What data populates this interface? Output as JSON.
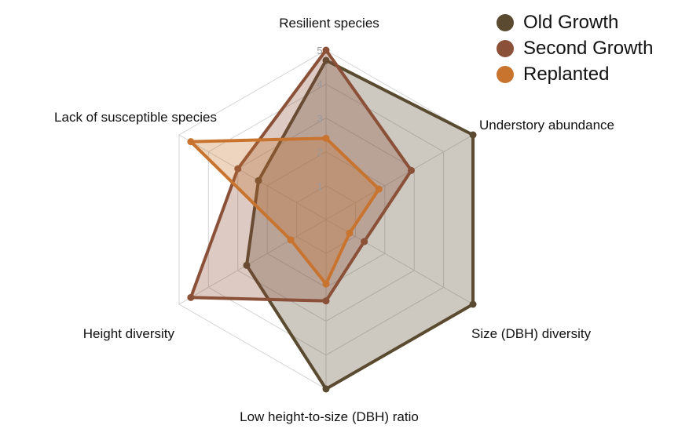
{
  "chart_data": {
    "type": "radar",
    "axes": [
      "Resilient species",
      "Understory abundance",
      "Size (DBH) diversity",
      "Low height-to-size (DBH) ratio",
      "Height diversity",
      "Lack of susceptible species"
    ],
    "ticks": [
      "1",
      "2",
      "3",
      "4",
      "5"
    ],
    "range": [
      0,
      5
    ],
    "series": [
      {
        "name": "Old Growth",
        "color": "#5a4a30",
        "values": [
          4.7,
          5.0,
          5.0,
          5.0,
          2.7,
          2.3
        ]
      },
      {
        "name": "Second Growth",
        "color": "#8a5038",
        "values": [
          5.0,
          2.9,
          1.3,
          2.4,
          4.6,
          3.0
        ]
      },
      {
        "name": "Replanted",
        "color": "#c8742f",
        "values": [
          2.4,
          1.8,
          0.8,
          1.9,
          1.2,
          4.6
        ]
      }
    ],
    "legend_position": "top-right",
    "grid": true
  }
}
